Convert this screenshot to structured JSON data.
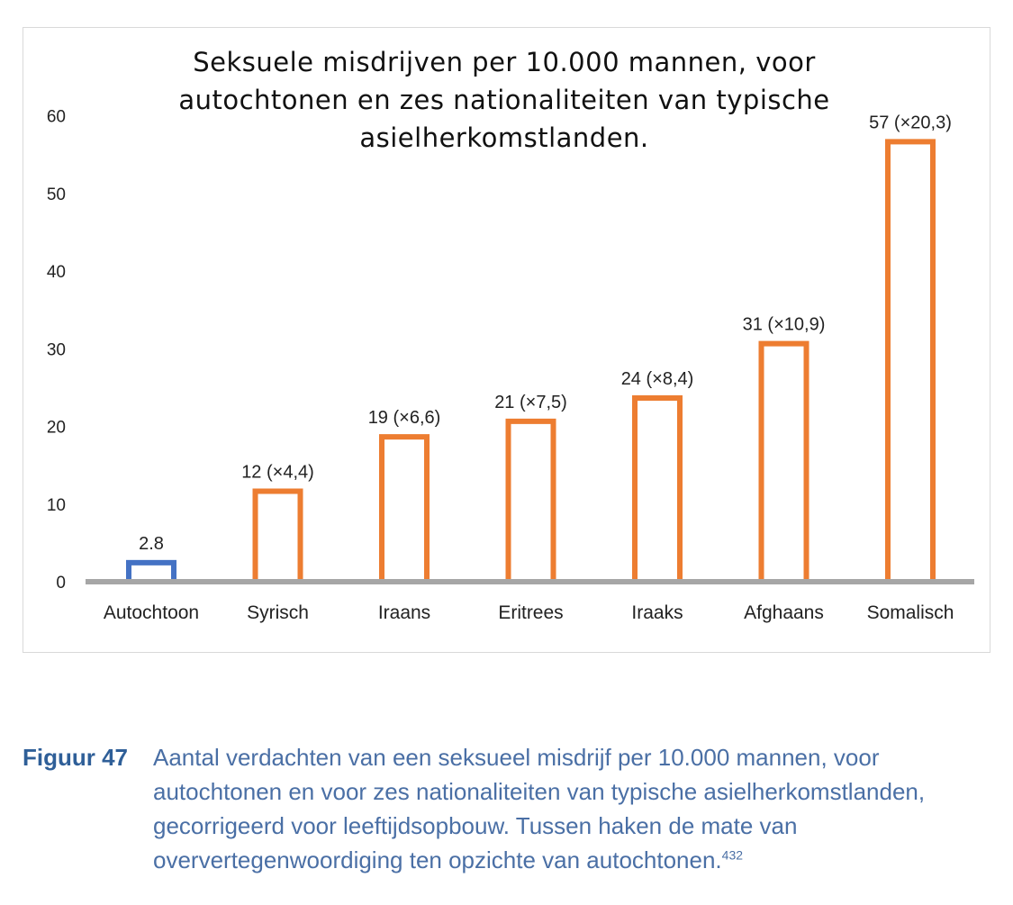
{
  "chart_data": {
    "type": "bar",
    "title": "Seksuele misdrijven per 10.000 mannen, voor autochtonen en zes nationaliteiten van typische asielherkomstlanden.",
    "categories": [
      "Autochtoon",
      "Syrisch",
      "Iraans",
      "Eritrees",
      "Iraaks",
      "Afghaans",
      "Somalisch"
    ],
    "values": [
      2.8,
      12,
      19,
      21,
      24,
      31,
      57
    ],
    "data_labels": [
      "2.8",
      "12 (×4,4)",
      "19 (×6,6)",
      "21 (×7,5)",
      "24 (×8,4)",
      "31 (×10,9)",
      "57 (×20,3)"
    ],
    "bar_colors": [
      "#4472c4",
      "#ed7d31",
      "#ed7d31",
      "#ed7d31",
      "#ed7d31",
      "#ed7d31",
      "#ed7d31"
    ],
    "bar_style": "outline",
    "y_ticks": [
      0,
      10,
      20,
      30,
      40,
      50,
      60
    ],
    "ylim": [
      0,
      60
    ],
    "xlabel": "",
    "ylabel": "",
    "grid": false,
    "legend": "none"
  },
  "caption": {
    "label": "Figuur 47",
    "text": "Aantal verdachten van een seksueel misdrijf per 10.000 mannen, voor autochtonen en voor zes nationaliteiten van typische asielherkomstlanden, gecorrigeerd voor leeftijdsopbouw. Tussen haken de mate van oververtegenwoordiging ten opzichte van autochtonen.",
    "footnote": "432"
  }
}
